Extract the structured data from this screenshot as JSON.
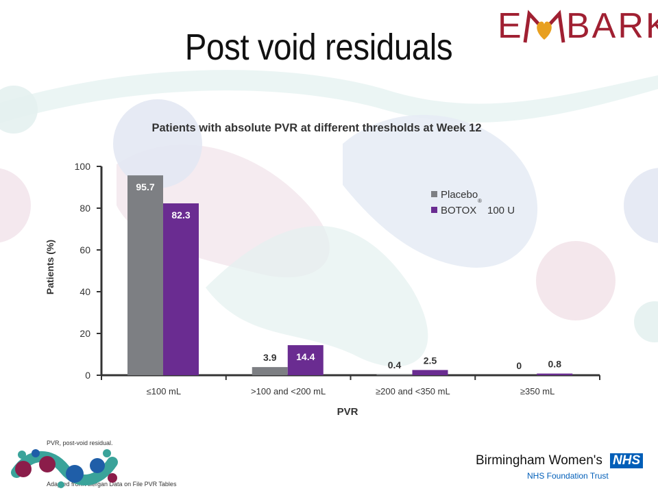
{
  "slide": {
    "title": "Post void residuals",
    "brand_logo_text": "EMBARK",
    "brand_logo_parts": [
      "E",
      "BARK"
    ],
    "footnote": "PVR, post-void residual.",
    "source": "Adapted from Allergan Data on File PVR Tables",
    "org_name": "Birmingham Women's",
    "org_badge": "NHS",
    "org_sub": "NHS Foundation Trust",
    "colors": {
      "brand": "#a02032",
      "placebo": "#7d7f83",
      "botox": "#6a2c91",
      "nhs_blue": "#005eb8"
    }
  },
  "chart_data": {
    "type": "bar",
    "title": "Patients with absolute PVR at different thresholds at Week 12",
    "xlabel": "PVR",
    "ylabel": "Patients (%)",
    "ylim": [
      0,
      100
    ],
    "yticks": [
      "0",
      "20",
      "40",
      "60",
      "80",
      "100"
    ],
    "categories": [
      "≤100 mL",
      ">100 and <200 mL",
      "≥200 and <350 mL",
      "≥350 mL"
    ],
    "series": [
      {
        "name": "Placebo",
        "values": [
          95.7,
          3.9,
          0.4,
          0
        ],
        "labels": [
          "95.7",
          "3.9",
          "0.4",
          "0"
        ],
        "color": "#7d7f83"
      },
      {
        "name": "BOTOX",
        "name_suffix": "100 U",
        "values": [
          82.3,
          14.4,
          2.5,
          0.8
        ],
        "labels": [
          "82.3",
          "14.4",
          "2.5",
          "0.8"
        ],
        "color": "#6a2c91"
      }
    ],
    "trademark": "®",
    "legend_position": "top-right",
    "grid": false
  }
}
